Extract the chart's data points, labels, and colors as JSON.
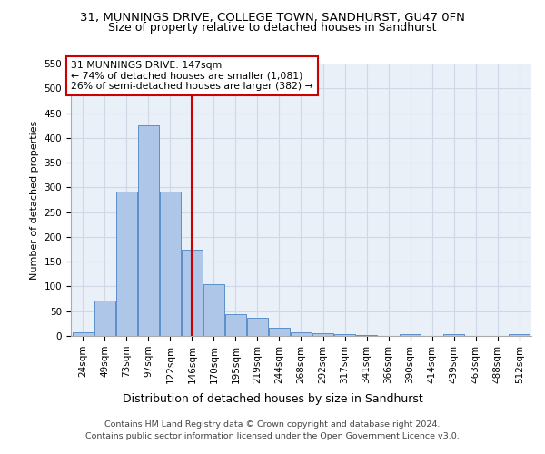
{
  "title_line1": "31, MUNNINGS DRIVE, COLLEGE TOWN, SANDHURST, GU47 0FN",
  "title_line2": "Size of property relative to detached houses in Sandhurst",
  "xlabel": "Distribution of detached houses by size in Sandhurst",
  "ylabel": "Number of detached properties",
  "footnote": "Contains HM Land Registry data © Crown copyright and database right 2024.\nContains public sector information licensed under the Open Government Licence v3.0.",
  "bin_labels": [
    "24sqm",
    "49sqm",
    "73sqm",
    "97sqm",
    "122sqm",
    "146sqm",
    "170sqm",
    "195sqm",
    "219sqm",
    "244sqm",
    "268sqm",
    "292sqm",
    "317sqm",
    "341sqm",
    "366sqm",
    "390sqm",
    "414sqm",
    "439sqm",
    "463sqm",
    "488sqm",
    "512sqm"
  ],
  "bar_values": [
    8,
    71,
    292,
    425,
    291,
    175,
    105,
    44,
    37,
    16,
    8,
    6,
    3,
    1,
    0,
    3,
    0,
    4,
    0,
    0,
    3
  ],
  "bar_color": "#aec6e8",
  "bar_edge_color": "#5b8fc9",
  "property_bin_index": 5,
  "annotation_title": "31 MUNNINGS DRIVE: 147sqm",
  "annotation_line1": "← 74% of detached houses are smaller (1,081)",
  "annotation_line2": "26% of semi-detached houses are larger (382) →",
  "vline_color": "#cc0000",
  "ylim_max": 550,
  "yticks": [
    0,
    50,
    100,
    150,
    200,
    250,
    300,
    350,
    400,
    450,
    500,
    550
  ],
  "grid_color": "#d0d8e8",
  "bg_color": "#eaf0f8",
  "title_fontsize": 9.5,
  "subtitle_fontsize": 9,
  "tick_fontsize": 7.5,
  "ylabel_fontsize": 8,
  "xlabel_fontsize": 9,
  "footnote_fontsize": 6.8,
  "annot_fontsize": 7.8
}
